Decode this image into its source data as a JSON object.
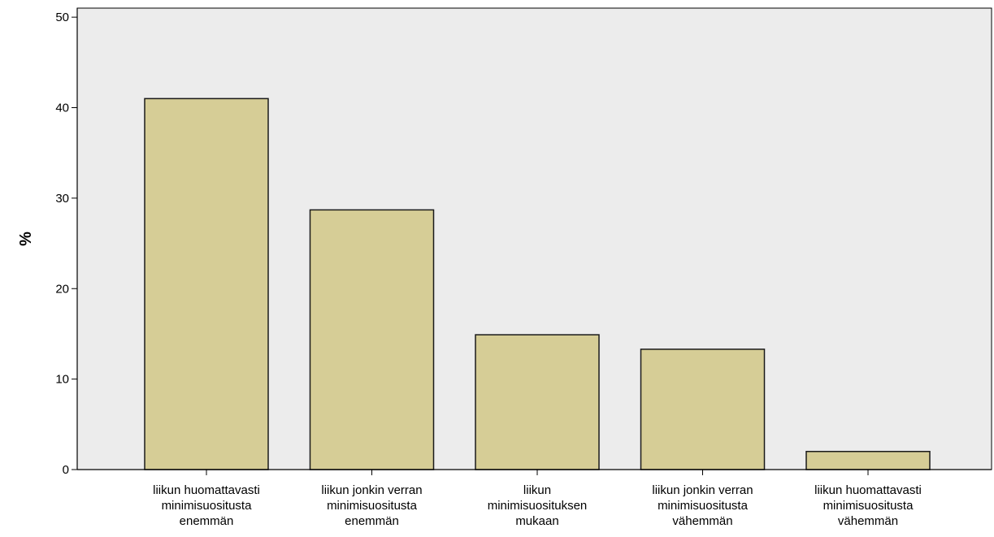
{
  "chart_data": {
    "type": "bar",
    "title": "",
    "xlabel": "",
    "ylabel": "%",
    "ylim": [
      0,
      51
    ],
    "yticks": [
      0,
      10,
      20,
      30,
      40,
      50
    ],
    "grid": false,
    "categories": [
      [
        "liikun huomattavasti",
        "minimisuositusta",
        "enemmän"
      ],
      [
        "liikun jonkin verran",
        "minimisuositusta",
        "enemmän"
      ],
      [
        "liikun",
        "minimisuosituksen",
        "mukaan"
      ],
      [
        "liikun jonkin verran",
        "minimisuositusta",
        "vähemmän"
      ],
      [
        "liikun huomattavasti",
        "minimisuositusta",
        "vähemmän"
      ]
    ],
    "values": [
      41.0,
      28.7,
      14.9,
      13.3,
      2.0
    ],
    "colors": {
      "bar_fill": "#d6cd96",
      "bar_stroke": "#1a1a1a",
      "plot_background": "#ececec"
    }
  }
}
